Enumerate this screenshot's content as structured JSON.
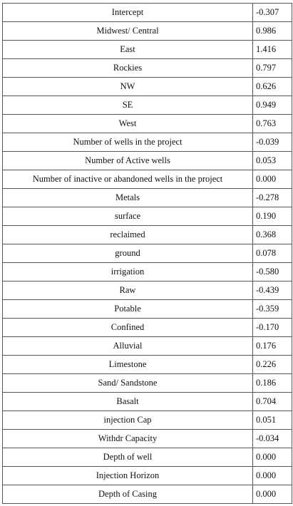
{
  "rows": [
    {
      "label": "Intercept",
      "value": "-0.307"
    },
    {
      "label": "Midwest/ Central",
      "value": "0.986"
    },
    {
      "label": "East",
      "value": "1.416"
    },
    {
      "label": "Rockies",
      "value": "0.797"
    },
    {
      "label": "NW",
      "value": "0.626"
    },
    {
      "label": "SE",
      "value": "0.949"
    },
    {
      "label": "West",
      "value": "0.763"
    },
    {
      "label": "Number of wells in the project",
      "value": "-0.039"
    },
    {
      "label": "Number of Active wells",
      "value": "0.053"
    },
    {
      "label": "Number of inactive or abandoned wells in the project",
      "value": "0.000"
    },
    {
      "label": "Metals",
      "value": "-0.278"
    },
    {
      "label": "surface",
      "value": "0.190"
    },
    {
      "label": "reclaimed",
      "value": "0.368"
    },
    {
      "label": "ground",
      "value": "0.078"
    },
    {
      "label": "irrigation",
      "value": "-0.580"
    },
    {
      "label": "Raw",
      "value": "-0.439"
    },
    {
      "label": "Potable",
      "value": "-0.359"
    },
    {
      "label": "Confined",
      "value": "-0.170"
    },
    {
      "label": "Alluvial",
      "value": "0.176"
    },
    {
      "label": "Limestone",
      "value": "0.226"
    },
    {
      "label": "Sand/ Sandstone",
      "value": "0.186"
    },
    {
      "label": "Basalt",
      "value": "0.704"
    },
    {
      "label": "injection Cap",
      "value": "0.051"
    },
    {
      "label": "Withdr Capacity",
      "value": "-0.034"
    },
    {
      "label": "Depth of well",
      "value": "0.000"
    },
    {
      "label": "Injection Horizon",
      "value": "0.000"
    },
    {
      "label": "Depth of Casing",
      "value": "0.000"
    }
  ]
}
